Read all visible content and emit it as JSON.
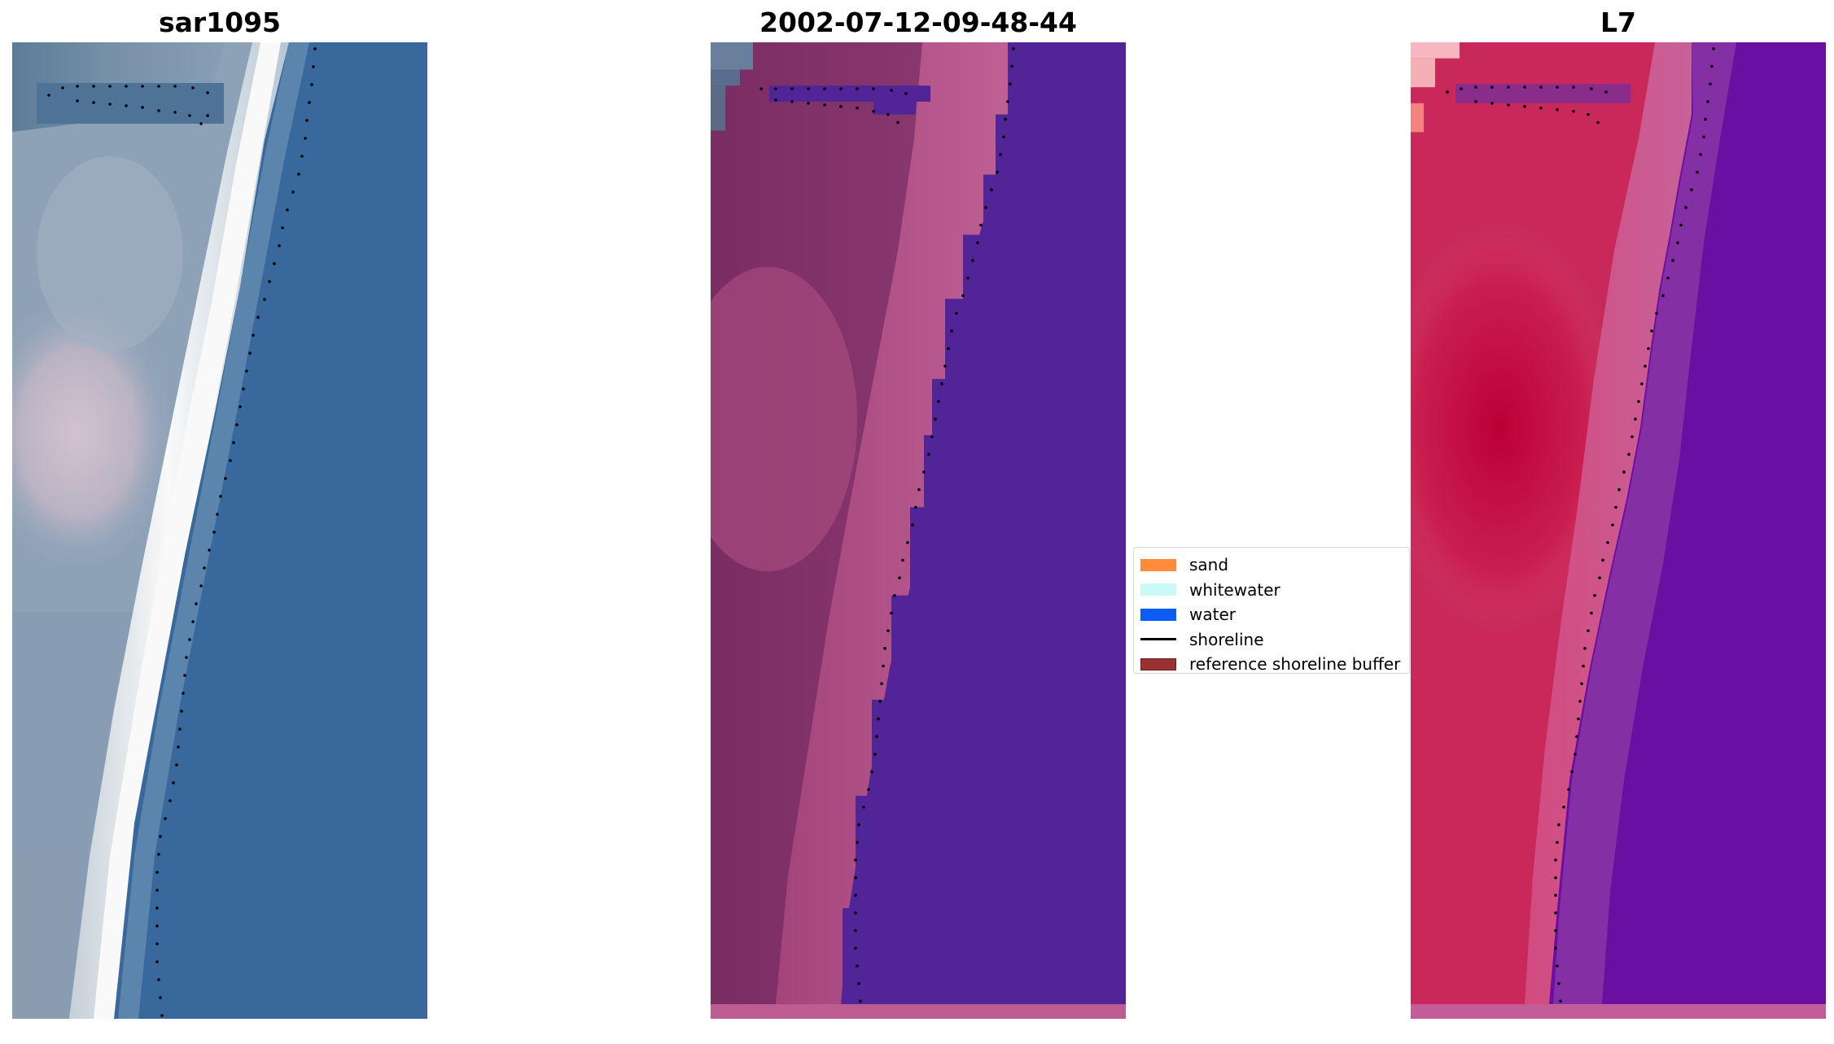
{
  "figure": {
    "panels": [
      {
        "id": "rgb",
        "title": "sar1095"
      },
      {
        "id": "classified",
        "title": "2002-07-12-09-48-44"
      },
      {
        "id": "index",
        "title": "L7"
      }
    ]
  },
  "legend": {
    "items": [
      {
        "label": "sand",
        "color": "#ff8c3a",
        "kind": "patch"
      },
      {
        "label": "whitewater",
        "color": "#c8fbf7",
        "kind": "patch"
      },
      {
        "label": "water",
        "color": "#0d5cf5",
        "kind": "patch"
      },
      {
        "label": "shoreline",
        "color": "#000000",
        "kind": "line"
      },
      {
        "label": "reference shoreline buffer",
        "color": "#9a3232",
        "kind": "patch"
      }
    ]
  },
  "colors": {
    "rgb_water": "#3a6aa0",
    "rgb_surf": "#f4f8f6",
    "rgb_land": "#93a8bd",
    "rgb_bright_patch": "#cdbfcf",
    "classified_water": "#512597",
    "classified_land": "#833669",
    "classified_beach": "#be5d92",
    "index_water": "#6a0fa2",
    "index_land": "#c61e52",
    "index_beach": "#d56595",
    "shoreline_dots": "#000000"
  }
}
